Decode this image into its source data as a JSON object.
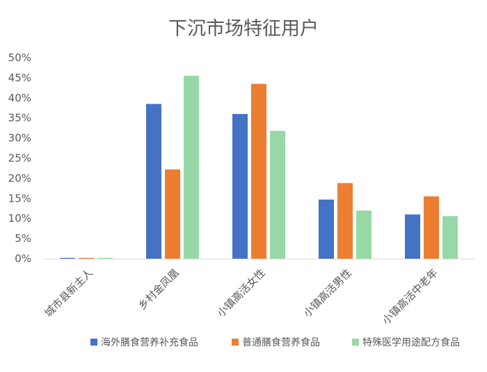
{
  "chart_data": {
    "type": "bar",
    "title": "下沉市场特征用户",
    "categories": [
      "城市县新主人",
      "乡村金凤凰",
      "小镇高活女性",
      "小镇高活男性",
      "小镇高活中老年"
    ],
    "series": [
      {
        "name": "海外膳食营养补充食品",
        "color": "#4472C4",
        "values": [
          0.2,
          38.5,
          36.0,
          14.7,
          11.0
        ]
      },
      {
        "name": "普通膳食营养食品",
        "color": "#ED7D31",
        "values": [
          0.2,
          22.2,
          43.5,
          18.8,
          15.5
        ]
      },
      {
        "name": "特殊医学用途配方食品",
        "color": "#96D9A7",
        "values": [
          0.2,
          45.5,
          31.8,
          12.0,
          10.6
        ]
      }
    ],
    "ylim": [
      0,
      50
    ],
    "yticks": [
      "0%",
      "5%",
      "10%",
      "15%",
      "20%",
      "25%",
      "30%",
      "35%",
      "40%",
      "45%",
      "50%"
    ],
    "ytick_values": [
      0,
      5,
      10,
      15,
      20,
      25,
      30,
      35,
      40,
      45,
      50
    ],
    "grid": false,
    "legend": "bottom",
    "xlabel": "",
    "ylabel": ""
  }
}
